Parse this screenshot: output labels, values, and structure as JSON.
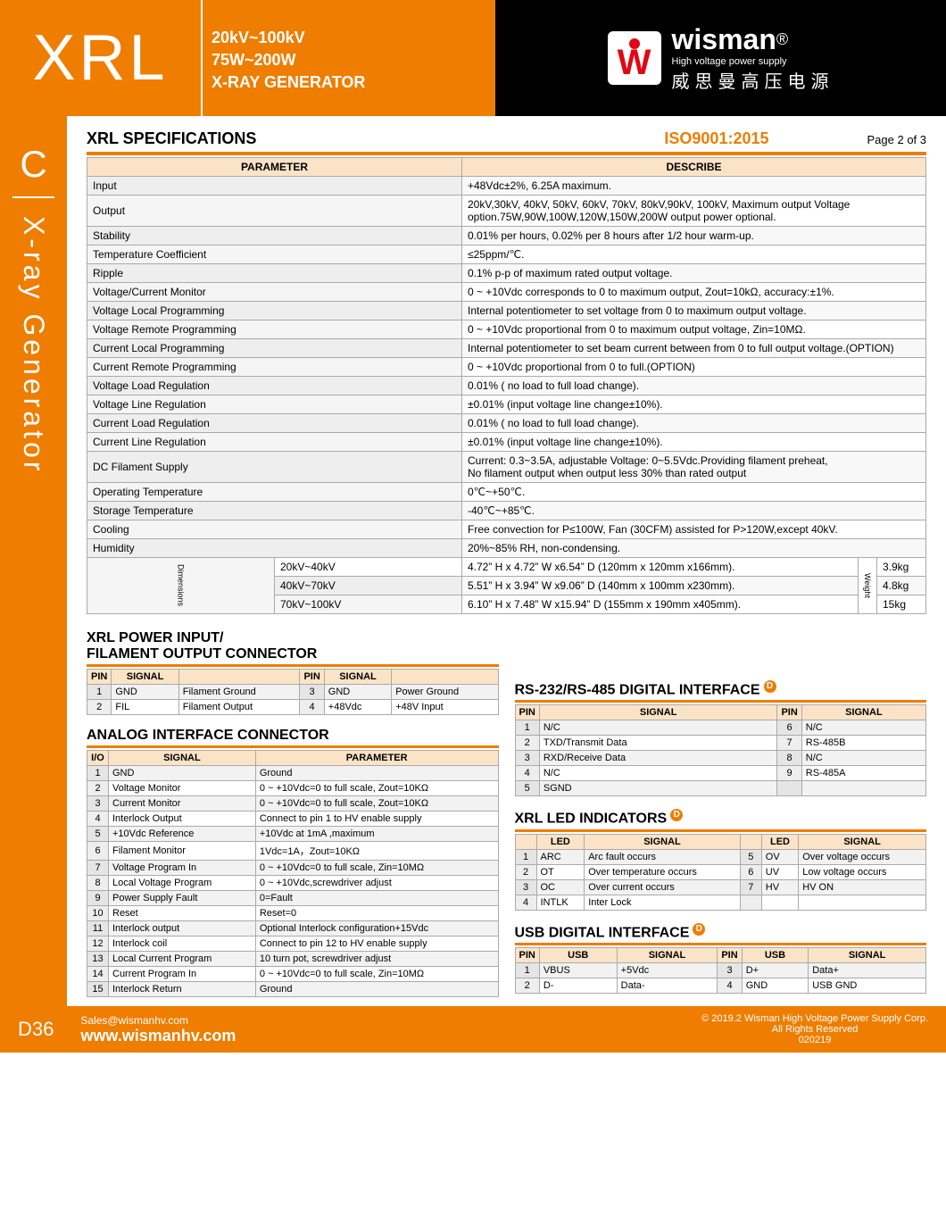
{
  "header": {
    "model": "XRL",
    "spec1": "20kV~100kV",
    "spec2": "75W~200W",
    "spec3": "X-RAY GENERATOR",
    "brand": "wisman",
    "brand_sub": "High voltage power supply",
    "brand_cn": "威思曼高压电源",
    "reg": "®"
  },
  "iso": "ISO9001:2015",
  "page": "Page 2 of  3",
  "side": {
    "c": "C",
    "text": "X-ray Generator"
  },
  "spec": {
    "title": "XRL SPECIFICATIONS",
    "h1": "PARAMETER",
    "h2": "DESCRIBE",
    "rows": [
      [
        "Input",
        "+48Vdc±2%, 6.25A maximum."
      ],
      [
        "Output",
        "20kV,30kV, 40kV, 50kV, 60kV, 70kV, 80kV,90kV, 100kV,  Maximum output Voltage option.75W,90W,100W,120W,150W,200W output power optional."
      ],
      [
        "Stability",
        "0.01% per hours, 0.02% per 8 hours after 1/2 hour warm-up."
      ],
      [
        "Temperature Coefficient",
        "≤25ppm/℃."
      ],
      [
        "Ripple",
        "0.1% p-p of maximum rated output voltage."
      ],
      [
        "Voltage/Current Monitor",
        "0 ~ +10Vdc corresponds to 0 to maximum output, Zout=10kΩ, accuracy:±1%."
      ],
      [
        "Voltage Local Programming",
        "Internal potentiometer to set voltage from 0 to maximum output voltage."
      ],
      [
        "Voltage Remote Programming",
        "0 ~ +10Vdc proportional from 0 to maximum output voltage, Zin=10MΩ."
      ],
      [
        "Current Local Programming",
        "Internal potentiometer to set beam current between from 0 to full output voltage.(OPTION)"
      ],
      [
        "Current Remote Programming",
        "0 ~ +10Vdc proportional from 0 to full.(OPTION)"
      ],
      [
        "Voltage Load Regulation",
        "0.01% ( no load to full load change)."
      ],
      [
        "Voltage Line Regulation",
        "±0.01% (input voltage line change±10%)."
      ],
      [
        "Current Load Regulation",
        "0.01% ( no load to full load change)."
      ],
      [
        "Current Line Regulation",
        "±0.01% (input voltage line change±10%)."
      ],
      [
        "DC Filament Supply",
        "Current:  0.3~3.5A, adjustable Voltage:  0~5.5Vdc.Providing filament preheat,\nNo filament output when output less 30% than rated output"
      ],
      [
        "Operating Temperature",
        "0℃~+50℃."
      ],
      [
        "Storage Temperature",
        "-40℃~+85℃."
      ],
      [
        "Cooling",
        "Free convection for P≤100W, Fan (30CFM) assisted for P>120W,except 40kV."
      ],
      [
        "Humidity",
        "20%~85% RH, non-condensing."
      ]
    ],
    "dim_label": "Dimensions",
    "wt_label": "Weight",
    "dims": [
      [
        "20kV~40kV",
        "4.72” H x 4.72” W x6.54” D (120mm x 120mm x166mm).",
        "3.9kg"
      ],
      [
        "40kV~70kV",
        "5.51” H x 3.94” W x9.06” D (140mm x 100mm x230mm).",
        "4.8kg"
      ],
      [
        "70kV~100kV",
        "6.10” H x 7.48” W x15.94” D (155mm x 190mm x405mm).",
        "15kg"
      ]
    ]
  },
  "power": {
    "title": "XRL POWER INPUT/\nFILAMENT OUTPUT CONNECTOR",
    "h": [
      "PIN",
      "SIGNAL",
      "",
      "PIN",
      "SIGNAL",
      ""
    ],
    "rows": [
      [
        "1",
        "GND",
        "Filament Ground",
        "3",
        "GND",
        "Power Ground"
      ],
      [
        "2",
        "FIL",
        "Filament Output",
        "4",
        "+48Vdc",
        "+48V Input"
      ]
    ]
  },
  "analog": {
    "title": "ANALOG INTERFACE CONNECTOR",
    "h": [
      "I/O",
      "SIGNAL",
      "PARAMETER"
    ],
    "rows": [
      [
        "1",
        "GND",
        "Ground"
      ],
      [
        "2",
        "Voltage Monitor",
        "0 ~ +10Vdc=0 to full scale, Zout=10KΩ"
      ],
      [
        "3",
        "Current Monitor",
        "0 ~ +10Vdc=0 to full scale, Zout=10KΩ"
      ],
      [
        "4",
        "Interlock Output",
        "Connect to pin 1 to HV enable supply"
      ],
      [
        "5",
        "+10Vdc Reference",
        "+10Vdc at 1mA ,maximum"
      ],
      [
        "6",
        "Filament Monitor",
        "1Vdc=1A，Zout=10KΩ"
      ],
      [
        "7",
        "Voltage Program In",
        "0 ~ +10Vdc=0 to full scale, Zin=10MΩ"
      ],
      [
        "8",
        "Local Voltage Program",
        "0 ~ +10Vdc,screwdriver adjust"
      ],
      [
        "9",
        "Power Supply Fault",
        "0=Fault"
      ],
      [
        "10",
        "Reset",
        "Reset=0"
      ],
      [
        "11",
        "Interlock output",
        "Optional Interlock configuration+15Vdc"
      ],
      [
        "12",
        "Interlock coil",
        "Connect to pin 12 to HV enable supply"
      ],
      [
        "13",
        "Local Current Program",
        "10 turn pot, screwdriver adjust"
      ],
      [
        "14",
        "Current Program In",
        "0 ~ +10Vdc=0 to full scale, Zin=10MΩ"
      ],
      [
        "15",
        "Interlock Return",
        "Ground"
      ]
    ]
  },
  "rs": {
    "title": "RS-232/RS-485 DIGITAL INTERFACE",
    "badge": "D",
    "h": [
      "PIN",
      "SIGNAL",
      "PIN",
      "SIGNAL"
    ],
    "rows": [
      [
        "1",
        "N/C",
        "6",
        "N/C"
      ],
      [
        "2",
        "TXD/Transmit Data",
        "7",
        "RS-485B"
      ],
      [
        "3",
        "RXD/Receive Data",
        "8",
        "N/C"
      ],
      [
        "4",
        "N/C",
        "9",
        "RS-485A"
      ],
      [
        "5",
        "SGND",
        "",
        ""
      ]
    ]
  },
  "led": {
    "title": "XRL LED INDICATORS",
    "badge": "D",
    "h": [
      "",
      "LED",
      "SIGNAL",
      "",
      "LED",
      "SIGNAL"
    ],
    "rows": [
      [
        "1",
        "ARC",
        "Arc fault occurs",
        "5",
        "OV",
        "Over voltage occurs"
      ],
      [
        "2",
        "OT",
        "Over temperature occurs",
        "6",
        "UV",
        "Low voltage occurs"
      ],
      [
        "3",
        "OC",
        "Over current occurs",
        "7",
        "HV",
        "HV ON"
      ],
      [
        "4",
        "INTLK",
        "Inter Lock",
        "",
        "",
        ""
      ]
    ]
  },
  "usb": {
    "title": "USB DIGITAL INTERFACE",
    "badge": "D",
    "h": [
      "PIN",
      "USB",
      "SIGNAL",
      "PIN",
      "USB",
      "SIGNAL"
    ],
    "rows": [
      [
        "1",
        "VBUS",
        "+5Vdc",
        "3",
        "D+",
        "Data+"
      ],
      [
        "2",
        "D-",
        "Data-",
        "4",
        "GND",
        "USB GND"
      ]
    ]
  },
  "footer": {
    "code": "D36",
    "email": "Sales@wismanhv.com",
    "web": "www.wismanhv.com",
    "copy": "© 2019.2 Wisman High Voltage Power Supply Corp.",
    "rights": "All Rights Reserved",
    "num": "020219"
  },
  "colors": {
    "orange": "#ef7d00",
    "header_bg": "#fbe3c7"
  }
}
